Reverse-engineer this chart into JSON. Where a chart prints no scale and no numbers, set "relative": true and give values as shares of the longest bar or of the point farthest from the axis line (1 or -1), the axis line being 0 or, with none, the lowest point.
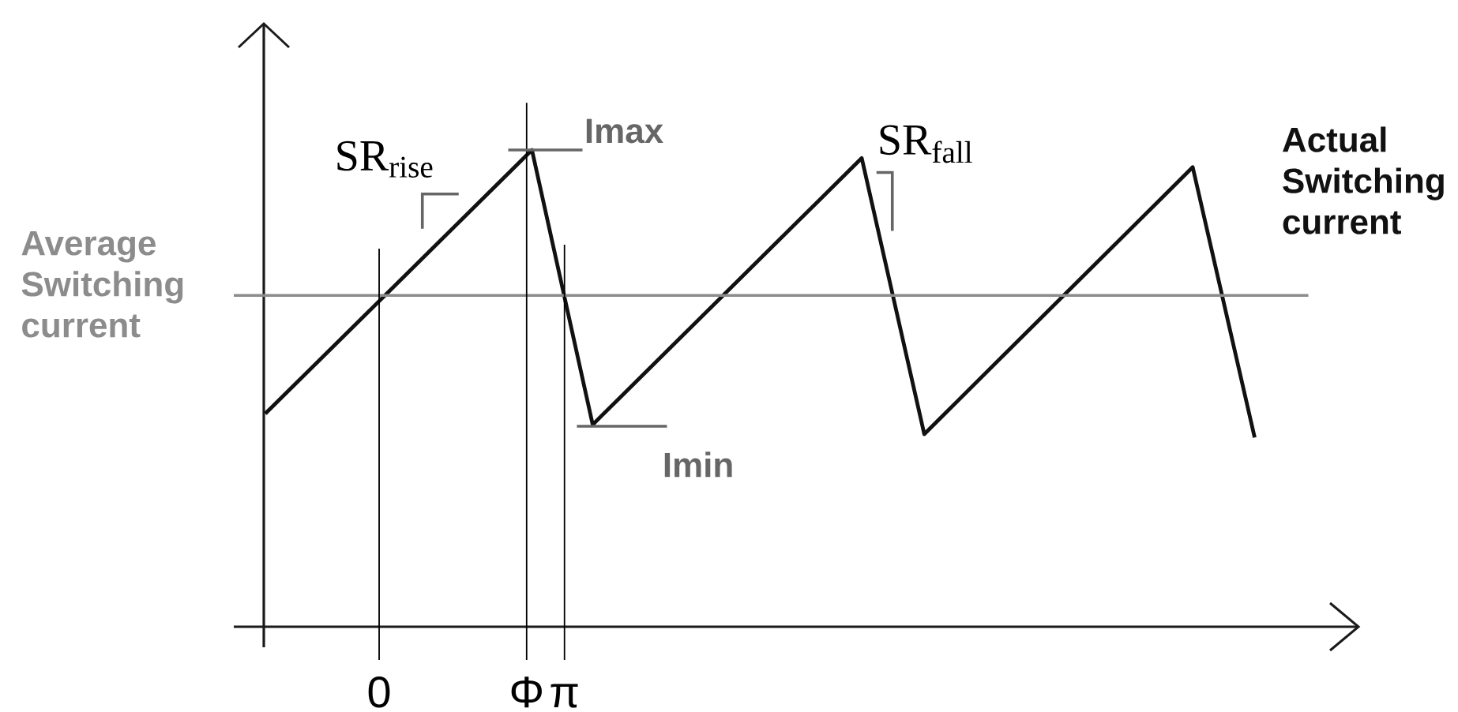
{
  "chart_data": {
    "type": "line",
    "relative": true,
    "x": [
      -1.93,
      2.59,
      3.62,
      8.18,
      9.24,
      13.79,
      14.84
    ],
    "series": [
      {
        "name": "Actual Switching current",
        "color": "#111111",
        "values": [
          0.447,
          1,
          0.424,
          0.983,
          0.404,
          0.964,
          0.397
        ]
      }
    ],
    "xlim": [
      -1.955,
      16.6
    ],
    "xticks": [
      0,
      {
        "value": 2.5,
        "label": "Φ"
      },
      {
        "value": 3.1416,
        "label": "π"
      }
    ],
    "ref_lines": [
      {
        "axis": "y",
        "value": 0.695,
        "label": "Average Switching current",
        "color": "#8c8c8c"
      },
      {
        "axis": "x",
        "value": 0,
        "color": "#000000"
      },
      {
        "axis": "x",
        "value": 2.5,
        "color": "#000000"
      },
      {
        "axis": "x",
        "value": 3.1416,
        "color": "#000000"
      }
    ],
    "annotations": [
      {
        "text": "SR$_{rise}$",
        "x": 1.0,
        "y": 0.805
      },
      {
        "text": "Imax",
        "x": 2.59,
        "y": 1
      },
      {
        "text": "SR$_{fall}$",
        "x": 8.35,
        "y": 0.89
      },
      {
        "text": "Imin",
        "x": 3.62,
        "y": 0.424
      }
    ],
    "line_style": "solid",
    "marker": "none"
  }
}
